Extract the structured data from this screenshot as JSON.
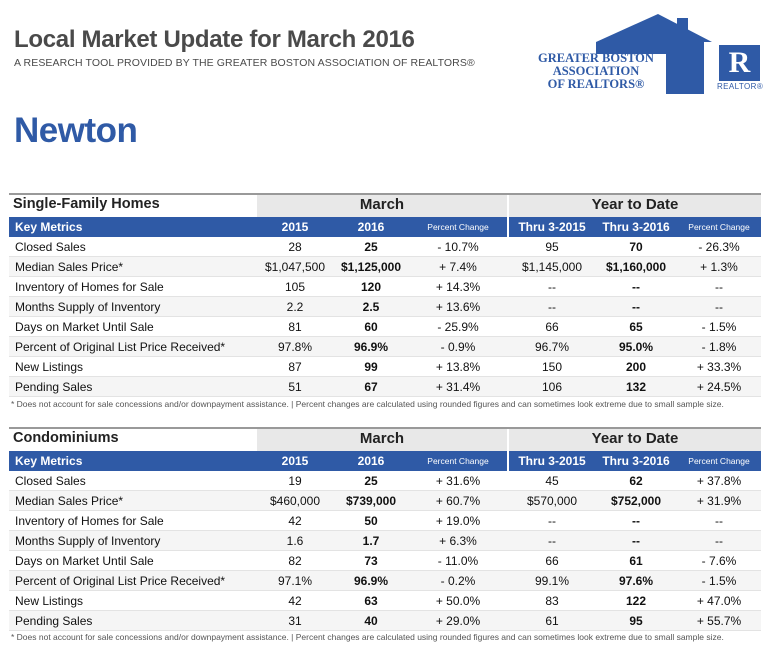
{
  "header": {
    "title": "Local Market Update for March 2016",
    "subtitle": "A RESEARCH TOOL PROVIDED BY THE GREATER BOSTON ASSOCIATION OF REALTORS®",
    "logo_lines": [
      "GREATER BOSTON",
      "ASSOCIATION",
      "OF REALTORS®"
    ],
    "realtor_mark": "R",
    "realtor_caption": "REALTOR®",
    "brand_color": "#2f5aa6"
  },
  "city": "Newton",
  "column_labels": {
    "key_metrics": "Key Metrics",
    "march": "March",
    "ytd": "Year to Date",
    "y2015": "2015",
    "y2016": "2016",
    "pct": "Percent Change",
    "thru2015": "Thru 3-2015",
    "thru2016": "Thru 3-2016"
  },
  "sections": [
    {
      "name": "Single-Family Homes",
      "rows": [
        {
          "metric": "Closed Sales",
          "m2015": "28",
          "m2016": "25",
          "mpct": "- 10.7%",
          "y2015": "95",
          "y2016": "70",
          "ypct": "- 26.3%"
        },
        {
          "metric": "Median Sales Price*",
          "m2015": "$1,047,500",
          "m2016": "$1,125,000",
          "mpct": "+ 7.4%",
          "y2015": "$1,145,000",
          "y2016": "$1,160,000",
          "ypct": "+ 1.3%"
        },
        {
          "metric": "Inventory of Homes for Sale",
          "m2015": "105",
          "m2016": "120",
          "mpct": "+ 14.3%",
          "y2015": "--",
          "y2016": "--",
          "ypct": "--"
        },
        {
          "metric": "Months Supply of Inventory",
          "m2015": "2.2",
          "m2016": "2.5",
          "mpct": "+ 13.6%",
          "y2015": "--",
          "y2016": "--",
          "ypct": "--"
        },
        {
          "metric": "Days on Market Until Sale",
          "m2015": "81",
          "m2016": "60",
          "mpct": "- 25.9%",
          "y2015": "66",
          "y2016": "65",
          "ypct": "- 1.5%"
        },
        {
          "metric": "Percent of Original List Price Received*",
          "m2015": "97.8%",
          "m2016": "96.9%",
          "mpct": "- 0.9%",
          "y2015": "96.7%",
          "y2016": "95.0%",
          "ypct": "- 1.8%"
        },
        {
          "metric": "New Listings",
          "m2015": "87",
          "m2016": "99",
          "mpct": "+ 13.8%",
          "y2015": "150",
          "y2016": "200",
          "ypct": "+ 33.3%"
        },
        {
          "metric": "Pending Sales",
          "m2015": "51",
          "m2016": "67",
          "mpct": "+ 31.4%",
          "y2015": "106",
          "y2016": "132",
          "ypct": "+ 24.5%"
        }
      ],
      "footnote": "* Does not account for sale concessions and/or downpayment assistance.  |  Percent changes are calculated using rounded figures and can sometimes look extreme due to small sample size."
    },
    {
      "name": "Condominiums",
      "rows": [
        {
          "metric": "Closed Sales",
          "m2015": "19",
          "m2016": "25",
          "mpct": "+ 31.6%",
          "y2015": "45",
          "y2016": "62",
          "ypct": "+ 37.8%"
        },
        {
          "metric": "Median Sales Price*",
          "m2015": "$460,000",
          "m2016": "$739,000",
          "mpct": "+ 60.7%",
          "y2015": "$570,000",
          "y2016": "$752,000",
          "ypct": "+ 31.9%"
        },
        {
          "metric": "Inventory of Homes for Sale",
          "m2015": "42",
          "m2016": "50",
          "mpct": "+ 19.0%",
          "y2015": "--",
          "y2016": "--",
          "ypct": "--"
        },
        {
          "metric": "Months Supply of Inventory",
          "m2015": "1.6",
          "m2016": "1.7",
          "mpct": "+ 6.3%",
          "y2015": "--",
          "y2016": "--",
          "ypct": "--"
        },
        {
          "metric": "Days on Market Until Sale",
          "m2015": "82",
          "m2016": "73",
          "mpct": "- 11.0%",
          "y2015": "66",
          "y2016": "61",
          "ypct": "- 7.6%"
        },
        {
          "metric": "Percent of Original List Price Received*",
          "m2015": "97.1%",
          "m2016": "96.9%",
          "mpct": "- 0.2%",
          "y2015": "99.1%",
          "y2016": "97.6%",
          "ypct": "- 1.5%"
        },
        {
          "metric": "New Listings",
          "m2015": "42",
          "m2016": "63",
          "mpct": "+ 50.0%",
          "y2015": "83",
          "y2016": "122",
          "ypct": "+ 47.0%"
        },
        {
          "metric": "Pending Sales",
          "m2015": "31",
          "m2016": "40",
          "mpct": "+ 29.0%",
          "y2015": "61",
          "y2016": "95",
          "ypct": "+ 55.7%"
        }
      ],
      "footnote": "* Does not account for sale concessions and/or downpayment assistance.  |  Percent changes are calculated using rounded figures and can sometimes look extreme due to small sample size."
    }
  ]
}
